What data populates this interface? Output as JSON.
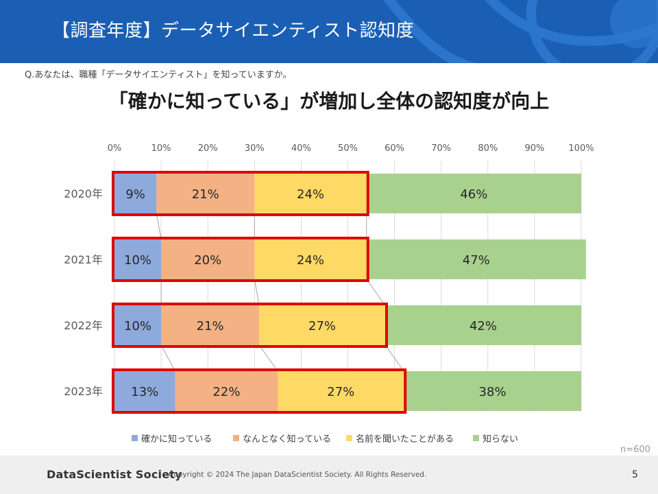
{
  "header": {
    "title": "【調査年度】データサイエンティスト認知度",
    "bg_color": "#1a5fb4"
  },
  "question": "Q.あなたは、職種「データサイエンティスト」を知っていますか。",
  "headline": "「確かに知っている」が増加し全体の認知度が向上",
  "sample_size": "n=600",
  "chart_data": {
    "type": "bar",
    "orientation": "horizontal",
    "stacked": true,
    "percent_stacked": true,
    "title": "「確かに知っている」が増加し全体の認知度が向上",
    "categories": [
      "2020年",
      "2021年",
      "2022年",
      "2023年"
    ],
    "x_ticks": [
      "0%",
      "10%",
      "20%",
      "30%",
      "40%",
      "50%",
      "60%",
      "70%",
      "80%",
      "90%",
      "100%"
    ],
    "xlim": [
      0,
      100
    ],
    "grid": true,
    "legend_position": "bottom",
    "series": [
      {
        "name": "確かに知っている",
        "color": "#8eaadc",
        "values": [
          9,
          10,
          10,
          13
        ],
        "labels": [
          "9%",
          "10%",
          "10%",
          "13%"
        ]
      },
      {
        "name": "なんとなく知っている",
        "color": "#f4b183",
        "values": [
          21,
          20,
          21,
          22
        ],
        "labels": [
          "21%",
          "20%",
          "21%",
          "22%"
        ]
      },
      {
        "name": "名前を聞いたことがある",
        "color": "#ffd966",
        "values": [
          24,
          24,
          27,
          27
        ],
        "labels": [
          "24%",
          "24%",
          "27%",
          "27%"
        ]
      },
      {
        "name": "知らない",
        "color": "#a9d18e",
        "values": [
          46,
          47,
          42,
          38
        ],
        "labels": [
          "46%",
          "47%",
          "42%",
          "38%"
        ]
      }
    ],
    "highlight": {
      "series_count": 3,
      "color": "#e00000"
    }
  },
  "footer": {
    "logo": "DataScientist Society",
    "copyright": "Copyright © 2024  The Japan DataScientist Society. All Rights Reserved.",
    "page_number": "5"
  }
}
